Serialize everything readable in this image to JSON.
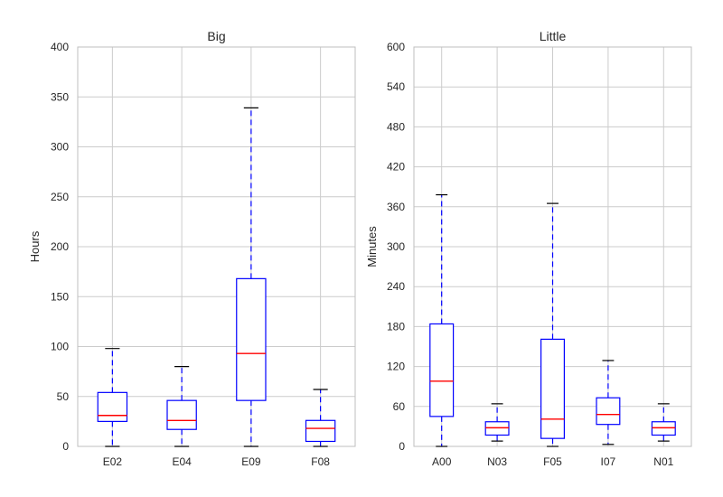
{
  "chart_data": [
    {
      "type": "box",
      "title": "Big",
      "xlabel": "",
      "ylabel": "Hours",
      "ylim": [
        0,
        400
      ],
      "yticks": [
        0,
        50,
        100,
        150,
        200,
        250,
        300,
        350,
        400
      ],
      "grid": true,
      "categories": [
        "E02",
        "E04",
        "E09",
        "F08"
      ],
      "boxes": [
        {
          "label": "E02",
          "whisker_low": 0,
          "q1": 25,
          "median": 31,
          "q3": 54,
          "whisker_high": 98
        },
        {
          "label": "E04",
          "whisker_low": 0,
          "q1": 17,
          "median": 26,
          "q3": 46,
          "whisker_high": 80
        },
        {
          "label": "E09",
          "whisker_low": 0,
          "q1": 46,
          "median": 93,
          "q3": 168,
          "whisker_high": 339
        },
        {
          "label": "F08",
          "whisker_low": 0,
          "q1": 5,
          "median": 18,
          "q3": 26,
          "whisker_high": 57
        }
      ]
    },
    {
      "type": "box",
      "title": "Little",
      "xlabel": "",
      "ylabel": "Minutes",
      "ylim": [
        0,
        600
      ],
      "yticks": [
        0,
        60,
        120,
        180,
        240,
        300,
        360,
        420,
        480,
        540,
        600
      ],
      "grid": true,
      "categories": [
        "A00",
        "N03",
        "F05",
        "I07",
        "N01"
      ],
      "boxes": [
        {
          "label": "A00",
          "whisker_low": 0,
          "q1": 45,
          "median": 98,
          "q3": 184,
          "whisker_high": 378
        },
        {
          "label": "N03",
          "whisker_low": 8,
          "q1": 17,
          "median": 28,
          "q3": 37,
          "whisker_high": 64
        },
        {
          "label": "F05",
          "whisker_low": 0,
          "q1": 12,
          "median": 41,
          "q3": 161,
          "whisker_high": 365
        },
        {
          "label": "I07",
          "whisker_low": 3,
          "q1": 33,
          "median": 48,
          "q3": 73,
          "whisker_high": 129
        },
        {
          "label": "N01",
          "whisker_low": 8,
          "q1": 17,
          "median": 28,
          "q3": 37,
          "whisker_high": 64
        }
      ]
    }
  ],
  "colors": {
    "box": "#0000ff",
    "median": "#ff0000",
    "cap": "#000000",
    "grid": "#cccccc"
  }
}
